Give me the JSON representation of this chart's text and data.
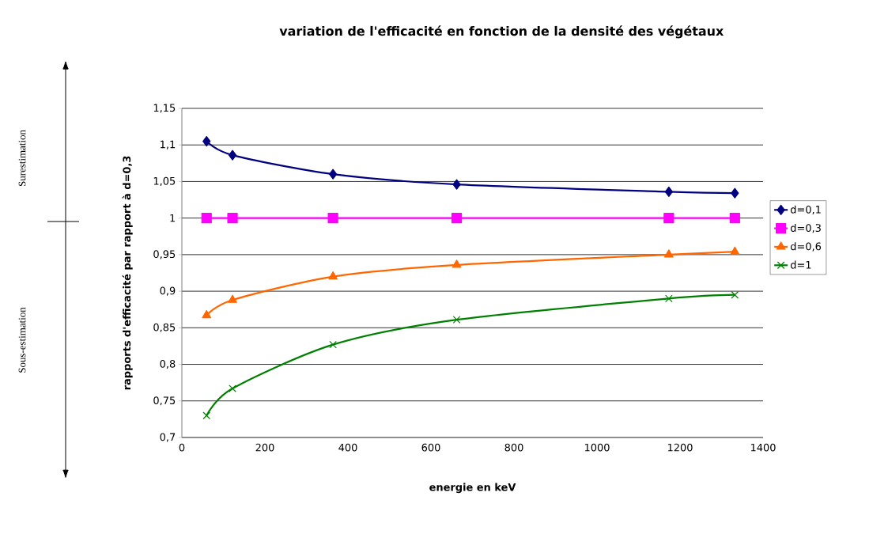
{
  "chart_data": {
    "type": "line",
    "title": "variation de l'efficacité en fonction de la densité des végétaux",
    "xlabel": "energie en keV",
    "ylabel": "rapports d'efficacité par rapport à d=0,3",
    "x": [
      59.5,
      122,
      364,
      662,
      1173,
      1332
    ],
    "series": [
      {
        "name": "d=0,1",
        "color": "#000080",
        "marker": "diamond",
        "values": [
          1.105,
          1.086,
          1.06,
          1.046,
          1.036,
          1.034
        ]
      },
      {
        "name": "d=0,3",
        "color": "#ff00ff",
        "marker": "square",
        "values": [
          1,
          1,
          1,
          1,
          1,
          1
        ]
      },
      {
        "name": "d=0,6",
        "color": "#ff6600",
        "marker": "triangle",
        "values": [
          0.867,
          0.888,
          0.92,
          0.936,
          0.95,
          0.954
        ]
      },
      {
        "name": "d=1",
        "color": "#008000",
        "marker": "cross",
        "values": [
          0.73,
          0.767,
          0.827,
          0.861,
          0.89,
          0.895
        ]
      }
    ],
    "xlim": [
      0,
      1400
    ],
    "xticks": [
      0,
      200,
      400,
      600,
      800,
      1000,
      1200,
      1400
    ],
    "ylim": [
      0.7,
      1.15
    ],
    "yticks": [
      {
        "value": 0.7,
        "label": "0,7"
      },
      {
        "value": 0.75,
        "label": "0,75"
      },
      {
        "value": 0.8,
        "label": "0,8"
      },
      {
        "value": 0.85,
        "label": "0,85"
      },
      {
        "value": 0.9,
        "label": "0,9"
      },
      {
        "value": 0.95,
        "label": "0,95"
      },
      {
        "value": 1,
        "label": "1"
      },
      {
        "value": 1.05,
        "label": "1,05"
      },
      {
        "value": 1.1,
        "label": "1,1"
      },
      {
        "value": 1.15,
        "label": "1,15"
      }
    ],
    "grid": "y",
    "legend": "right",
    "line_style": "solid",
    "annotations": [
      "Surestimation",
      "Sous-estimation"
    ]
  }
}
